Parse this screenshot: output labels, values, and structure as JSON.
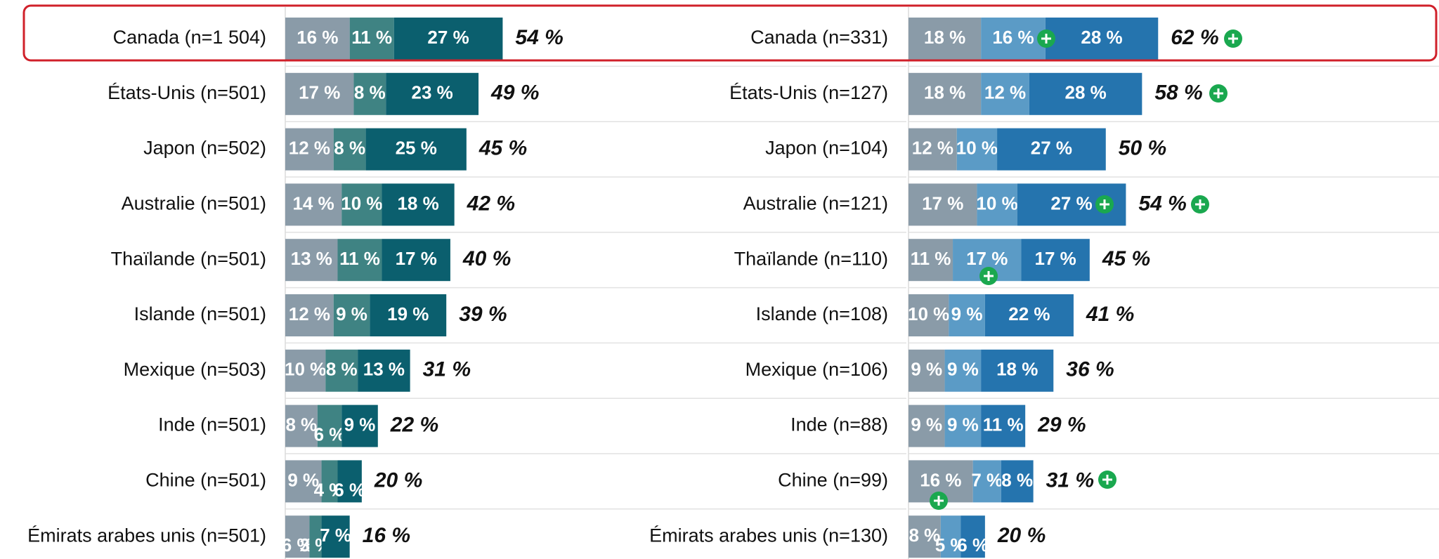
{
  "chart_data": [
    {
      "type": "stacked-bar",
      "categories": [
        "Canada (n=1 504)",
        "États-Unis (n=501)",
        "Japon (n=502)",
        "Australie (n=501)",
        "Thaïlande (n=501)",
        "Islande (n=501)",
        "Mexique (n=503)",
        "Inde (n=501)",
        "Chine (n=501)",
        "Émirats arabes unis (n=501)"
      ],
      "series": [
        {
          "color": "#8a9ba8",
          "values": [
            16,
            17,
            12,
            14,
            13,
            12,
            10,
            8,
            9,
            6
          ],
          "value_labels": [
            "16 %",
            "17 %",
            "12 %",
            "14 %",
            "13 %",
            "12 %",
            "10 %",
            "8 %",
            "9 %",
            "6 %"
          ]
        },
        {
          "color": "#3f8383",
          "values": [
            11,
            8,
            8,
            10,
            11,
            9,
            8,
            6,
            4,
            3
          ],
          "value_labels": [
            "11 %",
            "8 %",
            "8 %",
            "10 %",
            "11 %",
            "9 %",
            "8 %",
            "6 %",
            "4 %",
            "3 %"
          ]
        },
        {
          "color": "#0b5f6e",
          "values": [
            27,
            23,
            25,
            18,
            17,
            19,
            13,
            9,
            6,
            7
          ],
          "value_labels": [
            "27 %",
            "23 %",
            "25 %",
            "18 %",
            "17 %",
            "19 %",
            "13 %",
            "9 %",
            "6 %",
            "7 %"
          ]
        }
      ],
      "totals": [
        54,
        49,
        45,
        42,
        40,
        39,
        31,
        22,
        20,
        16
      ],
      "total_labels": [
        "54 %",
        "49 %",
        "45 %",
        "42 %",
        "40 %",
        "39 %",
        "31 %",
        "22 %",
        "20 %",
        "16 %"
      ],
      "xlim": [
        0,
        100
      ]
    },
    {
      "type": "stacked-bar",
      "categories": [
        "Canada (n=331)",
        "États-Unis (n=127)",
        "Japon (n=104)",
        "Australie (n=121)",
        "Thaïlande (n=110)",
        "Islande (n=108)",
        "Mexique (n=106)",
        "Inde (n=88)",
        "Chine (n=99)",
        "Émirats arabes unis (n=130)"
      ],
      "series": [
        {
          "color": "#8a9ba8",
          "values": [
            18,
            18,
            12,
            17,
            11,
            10,
            9,
            9,
            16,
            8
          ],
          "value_labels": [
            "18 %",
            "18 %",
            "12 %",
            "17 %",
            "11 %",
            "10 %",
            "9 %",
            "9 %",
            "16 %",
            "8 %"
          ]
        },
        {
          "color": "#5b9bc6",
          "values": [
            16,
            12,
            10,
            10,
            17,
            9,
            9,
            9,
            7,
            5
          ],
          "value_labels": [
            "16 %",
            "12 %",
            "10 %",
            "10 %",
            "17 %",
            "9 %",
            "9 %",
            "9 %",
            "7 %",
            "5 %"
          ]
        },
        {
          "color": "#2574ae",
          "values": [
            28,
            28,
            27,
            27,
            17,
            22,
            18,
            11,
            8,
            6
          ],
          "value_labels": [
            "28 %",
            "28 %",
            "27 %",
            "27 %",
            "17 %",
            "22 %",
            "18 %",
            "11 %",
            "8 %",
            "6 %"
          ]
        }
      ],
      "totals": [
        62,
        58,
        50,
        54,
        45,
        41,
        36,
        29,
        31,
        20
      ],
      "total_labels": [
        "62 %",
        "58 %",
        "50 %",
        "54 %",
        "45 %",
        "41 %",
        "36 %",
        "29 %",
        "31 %",
        "20 %"
      ],
      "xlim": [
        0,
        100
      ]
    }
  ]
}
